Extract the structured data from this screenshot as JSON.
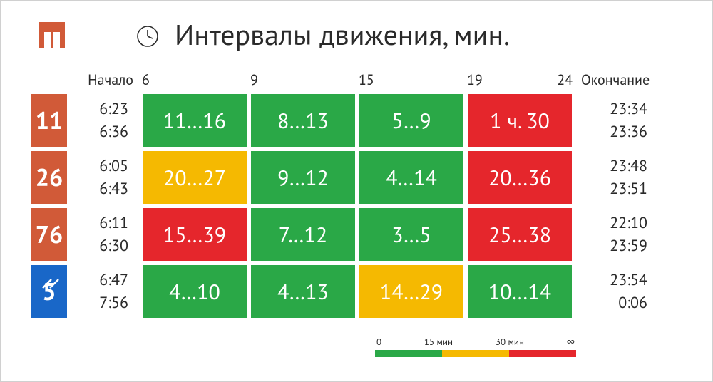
{
  "colors": {
    "green": "#2aa847",
    "yellow": "#f5b901",
    "red": "#e5262c",
    "orange_bus": "#d15a38",
    "blue_trolley": "#1967c8",
    "text": "#2a2a2a",
    "white": "#ffffff"
  },
  "title": "Интервалы движения, мин.",
  "header_labels": {
    "start": "Начало",
    "h6": "6",
    "h9": "9",
    "h15": "15",
    "h19": "19",
    "h24": "24",
    "end": "Окончание"
  },
  "routes": [
    {
      "number": "11",
      "badge_color": "#d15a38",
      "type": "bus",
      "start": [
        "6:23",
        "6:36"
      ],
      "end": [
        "23:34",
        "23:36"
      ],
      "cells": [
        {
          "text": "11…16",
          "color": "#2aa847"
        },
        {
          "text": "8…13",
          "color": "#2aa847"
        },
        {
          "text": "5…9",
          "color": "#2aa847"
        },
        {
          "text": "1 ч. 30",
          "color": "#e5262c"
        }
      ]
    },
    {
      "number": "26",
      "badge_color": "#d15a38",
      "type": "bus",
      "start": [
        "6:05",
        "6:43"
      ],
      "end": [
        "23:48",
        "23:51"
      ],
      "cells": [
        {
          "text": "20…27",
          "color": "#f5b901"
        },
        {
          "text": "9…12",
          "color": "#2aa847"
        },
        {
          "text": "4…14",
          "color": "#2aa847"
        },
        {
          "text": "20…36",
          "color": "#e5262c"
        }
      ]
    },
    {
      "number": "76",
      "badge_color": "#d15a38",
      "type": "bus",
      "start": [
        "6:11",
        "6:30"
      ],
      "end": [
        "22:10",
        "23:59"
      ],
      "cells": [
        {
          "text": "15…39",
          "color": "#e5262c"
        },
        {
          "text": "7…12",
          "color": "#2aa847"
        },
        {
          "text": "3…5",
          "color": "#2aa847"
        },
        {
          "text": "25…38",
          "color": "#e5262c"
        }
      ]
    },
    {
      "number": "5",
      "badge_color": "#1967c8",
      "type": "trolley",
      "start": [
        "6:47",
        "7:56"
      ],
      "end": [
        "23:54",
        "0:06"
      ],
      "cells": [
        {
          "text": "4…10",
          "color": "#2aa847"
        },
        {
          "text": "4…13",
          "color": "#2aa847"
        },
        {
          "text": "14…29",
          "color": "#f5b901"
        },
        {
          "text": "10…14",
          "color": "#2aa847"
        }
      ]
    }
  ],
  "legend": {
    "labels": [
      "0",
      "15 мин",
      "30 мин",
      "∞"
    ],
    "seg_colors": [
      "#2aa847",
      "#f5b901",
      "#e5262c"
    ]
  }
}
